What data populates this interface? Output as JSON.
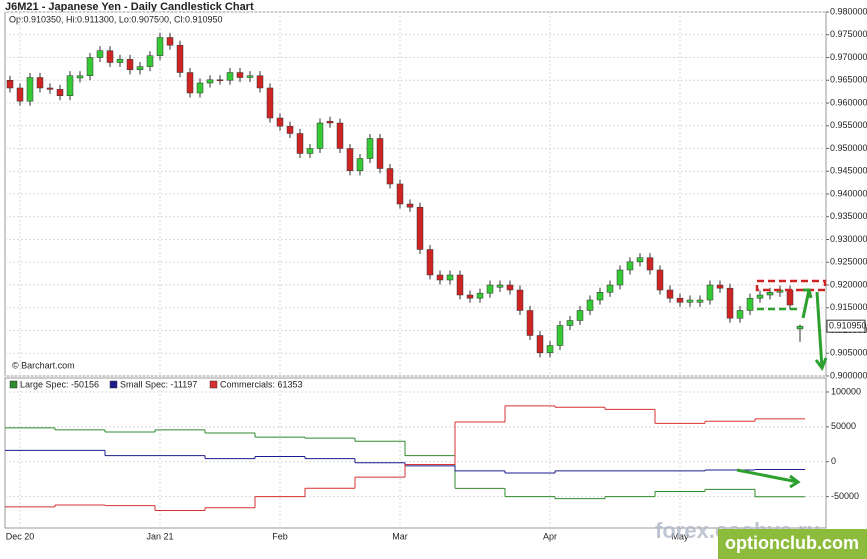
{
  "chart_data": [
    {
      "type": "candlestick",
      "title": "J6M21 - Japanese Yen - Daily Candlestick Chart",
      "subtitle": "Op:0.910350, Hi:0.911300, Lo:0.907500, Cl:0.910950",
      "credit": "© Barchart.com",
      "watermarks": [
        "forex.osobye.ru",
        "optionclub.com"
      ],
      "up_color": "#35c935",
      "down_color": "#cf2424",
      "categories": [
        null,
        "Dec 20",
        null,
        null,
        null,
        null,
        null,
        null,
        null,
        null,
        null,
        null,
        null,
        null,
        null,
        "Jan 21",
        null,
        null,
        null,
        null,
        null,
        null,
        null,
        null,
        null,
        null,
        null,
        "Feb",
        null,
        null,
        null,
        null,
        null,
        null,
        null,
        null,
        null,
        null,
        null,
        "Mar",
        null,
        null,
        null,
        null,
        null,
        null,
        null,
        null,
        null,
        null,
        null,
        null,
        null,
        null,
        "Apr",
        null,
        null,
        null,
        null,
        null,
        null,
        null,
        null,
        null,
        null,
        null,
        null,
        "May",
        null,
        null,
        null,
        null,
        null,
        null,
        null,
        null,
        null,
        null,
        null,
        null
      ],
      "candles": [
        [
          0.965,
          0.966,
          0.9623,
          0.9633
        ],
        [
          0.9633,
          0.9643,
          0.9594,
          0.9604
        ],
        [
          0.9604,
          0.9666,
          0.9594,
          0.9656
        ],
        [
          0.9656,
          0.9666,
          0.9623,
          0.9633
        ],
        [
          0.9633,
          0.9643,
          0.962,
          0.963
        ],
        [
          0.963,
          0.964,
          0.9606,
          0.9616
        ],
        [
          0.9616,
          0.967,
          0.9606,
          0.966
        ],
        [
          0.9655,
          0.967,
          0.9645,
          0.966
        ],
        [
          0.966,
          0.971,
          0.965,
          0.97
        ],
        [
          0.97,
          0.9725,
          0.969,
          0.9715
        ],
        [
          0.9715,
          0.9725,
          0.9679,
          0.9689
        ],
        [
          0.9689,
          0.9706,
          0.9679,
          0.9696
        ],
        [
          0.9696,
          0.9706,
          0.9663,
          0.9673
        ],
        [
          0.9673,
          0.969,
          0.9663,
          0.968
        ],
        [
          0.968,
          0.9714,
          0.967,
          0.9704
        ],
        [
          0.9704,
          0.9754,
          0.9694,
          0.9744
        ],
        [
          0.9744,
          0.9754,
          0.9717,
          0.9727
        ],
        [
          0.9727,
          0.9737,
          0.9657,
          0.9667
        ],
        [
          0.9667,
          0.9677,
          0.9612,
          0.9622
        ],
        [
          0.9622,
          0.9654,
          0.9612,
          0.9644
        ],
        [
          0.9644,
          0.9661,
          0.9634,
          0.9651
        ],
        [
          0.9651,
          0.9661,
          0.964,
          0.965
        ],
        [
          0.965,
          0.9677,
          0.964,
          0.9667
        ],
        [
          0.9667,
          0.9677,
          0.9646,
          0.9656
        ],
        [
          0.9656,
          0.967,
          0.9646,
          0.966
        ],
        [
          0.966,
          0.967,
          0.9623,
          0.9633
        ],
        [
          0.9633,
          0.9643,
          0.9557,
          0.9567
        ],
        [
          0.9567,
          0.9577,
          0.9539,
          0.9549
        ],
        [
          0.9549,
          0.9559,
          0.9523,
          0.9533
        ],
        [
          0.9533,
          0.9543,
          0.9479,
          0.9489
        ],
        [
          0.9489,
          0.951,
          0.9479,
          0.95
        ],
        [
          0.95,
          0.9566,
          0.949,
          0.9556
        ],
        [
          0.956,
          0.957,
          0.9546,
          0.9556
        ],
        [
          0.9556,
          0.9566,
          0.949,
          0.95
        ],
        [
          0.95,
          0.951,
          0.9441,
          0.9451
        ],
        [
          0.9451,
          0.9488,
          0.9441,
          0.9478
        ],
        [
          0.9478,
          0.9532,
          0.9468,
          0.9522
        ],
        [
          0.9522,
          0.9532,
          0.9446,
          0.9456
        ],
        [
          0.9456,
          0.9466,
          0.9412,
          0.9422
        ],
        [
          0.9422,
          0.9432,
          0.9368,
          0.9378
        ],
        [
          0.9378,
          0.9388,
          0.9361,
          0.9371
        ],
        [
          0.9371,
          0.9381,
          0.9268,
          0.9278
        ],
        [
          0.9278,
          0.9288,
          0.9212,
          0.9222
        ],
        [
          0.9222,
          0.9232,
          0.9201,
          0.9211
        ],
        [
          0.9211,
          0.9232,
          0.9201,
          0.9222
        ],
        [
          0.9222,
          0.9232,
          0.9168,
          0.9178
        ],
        [
          0.9178,
          0.9188,
          0.9161,
          0.9171
        ],
        [
          0.9171,
          0.9192,
          0.9161,
          0.9182
        ],
        [
          0.9182,
          0.921,
          0.9172,
          0.92
        ],
        [
          0.9195,
          0.921,
          0.9185,
          0.92
        ],
        [
          0.92,
          0.921,
          0.9179,
          0.9189
        ],
        [
          0.9189,
          0.9199,
          0.9134,
          0.9144
        ],
        [
          0.9144,
          0.9154,
          0.9079,
          0.9089
        ],
        [
          0.9089,
          0.9099,
          0.9041,
          0.9051
        ],
        [
          0.9051,
          0.9077,
          0.9041,
          0.9067
        ],
        [
          0.9067,
          0.9121,
          0.9057,
          0.9111
        ],
        [
          0.9111,
          0.9132,
          0.9101,
          0.9122
        ],
        [
          0.9122,
          0.9154,
          0.9112,
          0.9144
        ],
        [
          0.9144,
          0.9177,
          0.9134,
          0.9167
        ],
        [
          0.9167,
          0.9194,
          0.9157,
          0.9184
        ],
        [
          0.9184,
          0.921,
          0.9174,
          0.92
        ],
        [
          0.92,
          0.9243,
          0.919,
          0.9233
        ],
        [
          0.9233,
          0.9261,
          0.9223,
          0.9251
        ],
        [
          0.9251,
          0.927,
          0.9241,
          0.926
        ],
        [
          0.926,
          0.927,
          0.9223,
          0.9233
        ],
        [
          0.9233,
          0.9243,
          0.9179,
          0.9189
        ],
        [
          0.9189,
          0.9199,
          0.9161,
          0.9171
        ],
        [
          0.9171,
          0.9181,
          0.9152,
          0.9162
        ],
        [
          0.9162,
          0.9177,
          0.9152,
          0.9167
        ],
        [
          0.9162,
          0.9177,
          0.9152,
          0.9167
        ],
        [
          0.9167,
          0.921,
          0.9157,
          0.92
        ],
        [
          0.92,
          0.921,
          0.9183,
          0.9193
        ],
        [
          0.9193,
          0.9203,
          0.9117,
          0.9127
        ],
        [
          0.9127,
          0.9154,
          0.9117,
          0.9144
        ],
        [
          0.9144,
          0.9181,
          0.9134,
          0.9171
        ],
        [
          0.9171,
          0.9188,
          0.9161,
          0.9178
        ],
        [
          0.9178,
          0.9194,
          0.9168,
          0.9184
        ],
        [
          0.9184,
          0.9199,
          0.9174,
          0.9189
        ],
        [
          0.9189,
          0.9199,
          0.9146,
          0.9156
        ],
        [
          0.91035,
          0.9113,
          0.9075,
          0.91095
        ]
      ],
      "last_price": {
        "value": 0.91095,
        "label": "0.910950"
      },
      "ylim": [
        0.9,
        0.98
      ],
      "yticks": [
        {
          "value": 0.9,
          "label": "0.900000"
        },
        {
          "value": 0.905,
          "label": "0.905000"
        },
        {
          "value": 0.91,
          "label": "0.910000"
        },
        {
          "value": 0.915,
          "label": "0.915000"
        },
        {
          "value": 0.92,
          "label": "0.920000"
        },
        {
          "value": 0.925,
          "label": "0.925000"
        },
        {
          "value": 0.93,
          "label": "0.930000"
        },
        {
          "value": 0.935,
          "label": "0.935000"
        },
        {
          "value": 0.94,
          "label": "0.940000"
        },
        {
          "value": 0.945,
          "label": "0.945000"
        },
        {
          "value": 0.95,
          "label": "0.950000"
        },
        {
          "value": 0.955,
          "label": "0.955000"
        },
        {
          "value": 0.96,
          "label": "0.960000"
        },
        {
          "value": 0.965,
          "label": "0.965000"
        },
        {
          "value": 0.97,
          "label": "0.970000"
        },
        {
          "value": 0.975,
          "label": "0.975000"
        },
        {
          "value": 0.98,
          "label": "0.980000"
        }
      ],
      "grid": true
    },
    {
      "type": "step",
      "series": [
        {
          "name": "Large Spec: -50156",
          "color": "#2e8b2e",
          "values": [
            48500,
            45600,
            42600,
            45600,
            41200,
            35300,
            33800,
            29400,
            8800,
            -38200,
            -50000,
            -52900,
            -50000,
            -42600,
            -39700,
            -50156
          ]
        },
        {
          "name": "Small Spec: -11197",
          "color": "#1c1c8c",
          "values": [
            16200,
            16200,
            8800,
            8800,
            4400,
            7400,
            4400,
            -1500,
            -5900,
            -13200,
            -16200,
            -13200,
            -13200,
            -13200,
            -11800,
            -11197
          ]
        },
        {
          "name": "Commercials: 61353",
          "color": "#d83030",
          "values": [
            -64700,
            -62000,
            -63000,
            -70000,
            -66000,
            -50000,
            -38000,
            -22000,
            -4000,
            57000,
            80000,
            78000,
            75000,
            55000,
            58000,
            61353
          ]
        }
      ],
      "ylim": [
        -95000,
        120000
      ],
      "yticks": [
        -50000,
        0,
        50000,
        100000
      ],
      "grid": true
    }
  ]
}
